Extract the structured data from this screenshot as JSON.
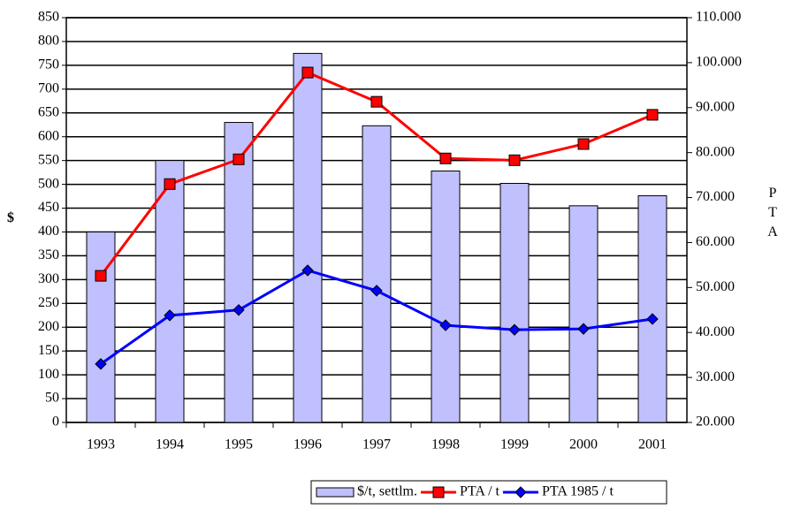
{
  "chart_data": {
    "type": "bar",
    "categories": [
      "1993",
      "1994",
      "1995",
      "1996",
      "1997",
      "1998",
      "1999",
      "2000",
      "2001"
    ],
    "y_label": "$",
    "y2_label": "PTA",
    "ylim": [
      0,
      850
    ],
    "yticks": [
      0,
      50,
      100,
      150,
      200,
      250,
      300,
      350,
      400,
      450,
      500,
      550,
      600,
      650,
      700,
      750,
      800,
      850
    ],
    "y2lim": [
      20000,
      110000
    ],
    "y2ticks": [
      {
        "value": 20000,
        "label": "20.000"
      },
      {
        "value": 30000,
        "label": "30.000"
      },
      {
        "value": 40000,
        "label": "40.000"
      },
      {
        "value": 50000,
        "label": "50.000"
      },
      {
        "value": 60000,
        "label": "60.000"
      },
      {
        "value": 70000,
        "label": "70.000"
      },
      {
        "value": 80000,
        "label": "80.000"
      },
      {
        "value": 90000,
        "label": "90.000"
      },
      {
        "value": 100000,
        "label": "100.000"
      },
      {
        "value": 110000,
        "label": "110.000"
      }
    ],
    "grid": true,
    "series": [
      {
        "name": "$/t, settlm.",
        "type": "bar",
        "color": "#c0c0ff",
        "values": [
          400,
          550,
          630,
          775,
          623,
          528,
          502,
          455,
          476
        ]
      },
      {
        "name": "PTA / t",
        "type": "line",
        "axis": "y2",
        "marker": "square",
        "color": "#ff0000",
        "values": [
          52600,
          73000,
          78500,
          97800,
          91300,
          78700,
          78300,
          81900,
          88400
        ]
      },
      {
        "name": "PTA 1985 / t",
        "type": "line",
        "axis": "y2",
        "marker": "diamond",
        "color": "#0000ff",
        "values": [
          33000,
          43800,
          45000,
          53800,
          49300,
          41600,
          40600,
          40800,
          43000
        ]
      }
    ]
  }
}
